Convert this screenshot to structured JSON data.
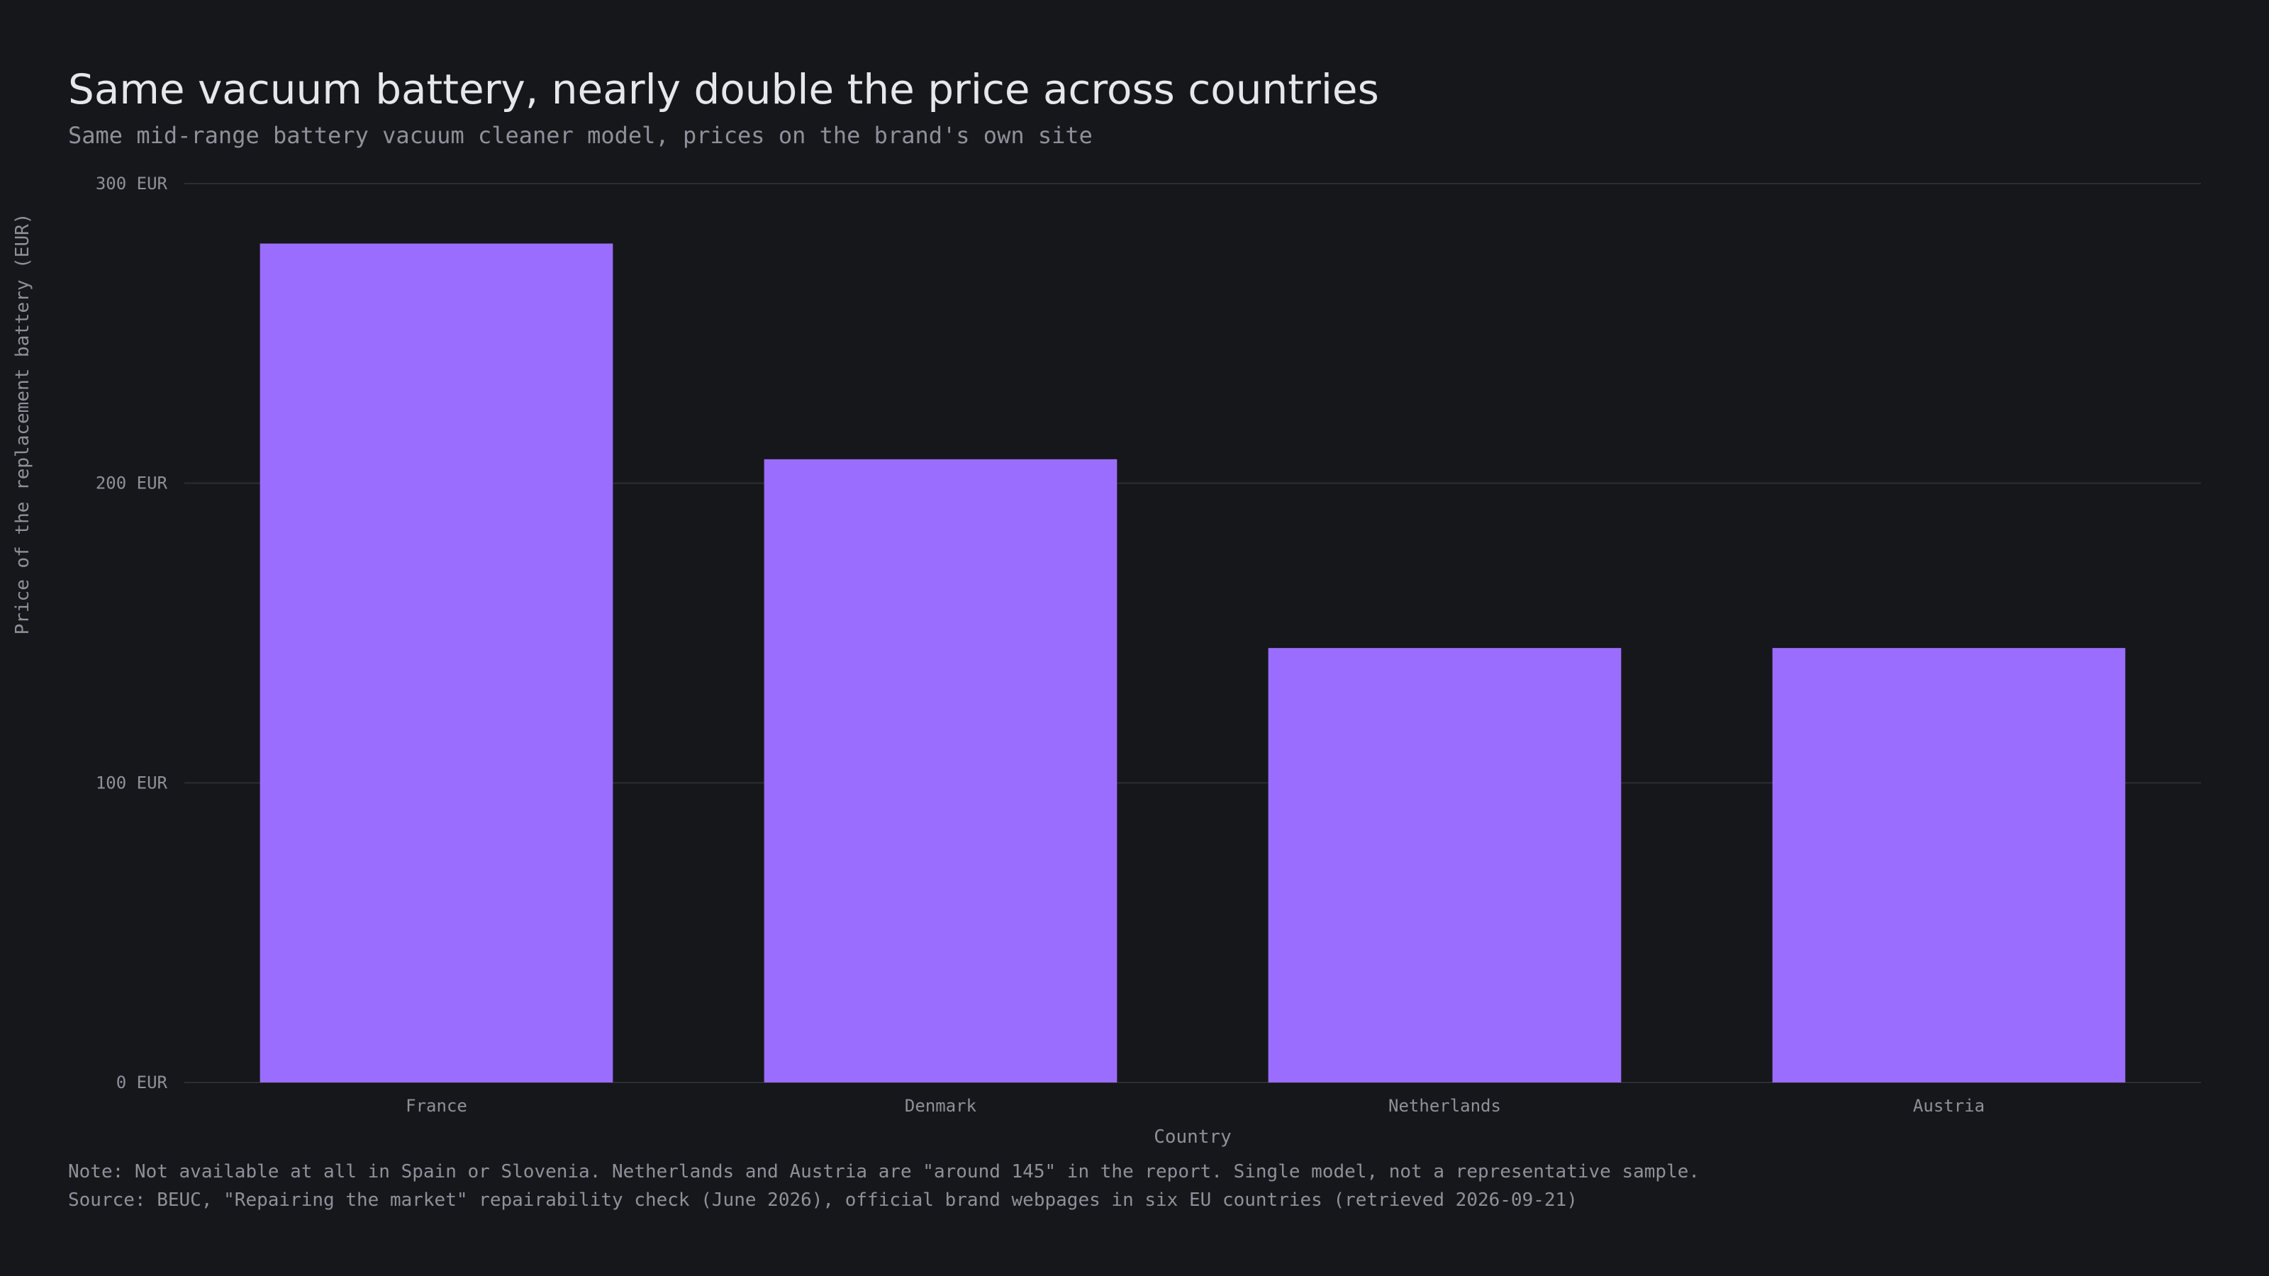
{
  "chart_data": {
    "type": "bar",
    "title": "Same vacuum battery, nearly double the price across countries",
    "subtitle": "Same mid-range battery vacuum cleaner model, prices on the brand's own site",
    "xlabel": "Country",
    "ylabel": "Price of the replacement battery (EUR)",
    "categories": [
      "France",
      "Denmark",
      "Netherlands",
      "Austria"
    ],
    "values": [
      280,
      208,
      145,
      145
    ],
    "ylim": [
      0,
      300
    ],
    "yticks": [
      0,
      100,
      200,
      300
    ],
    "ytick_labels": [
      "0 EUR",
      "100 EUR",
      "200 EUR",
      "300 EUR"
    ],
    "grid": true,
    "bar_color": "#9b6dff"
  },
  "footer": {
    "note": "Note: Not available at all in Spain or Slovenia. Netherlands and Austria are \"around 145\" in the report. Single model, not a representative sample.",
    "source": "Source: BEUC, \"Repairing the market\" repairability check (June 2026), official brand webpages in six EU countries (retrieved 2026-09-21)"
  },
  "colors": {
    "background": "#16171a",
    "gridline": "#2c2e33",
    "text_primary": "#e6e7ea",
    "text_secondary": "#8e919a"
  }
}
